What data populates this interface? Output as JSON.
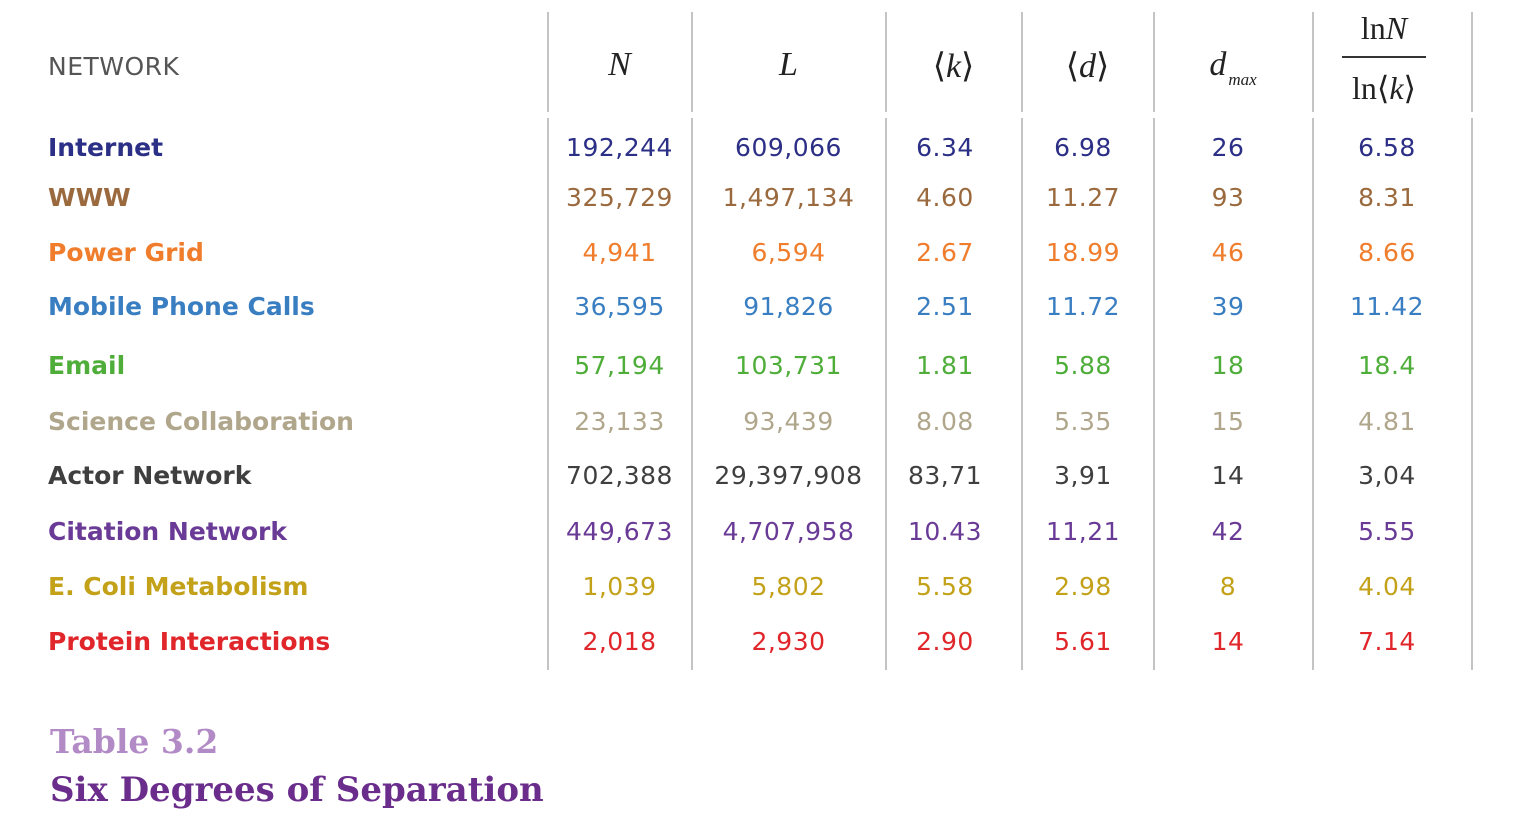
{
  "table": {
    "header": {
      "network": "NETWORK",
      "N": "N",
      "L": "L",
      "k": "k",
      "d": "d",
      "dmax_main": "d",
      "dmax_sub": "max",
      "ratio_num_ln": "ln",
      "ratio_num_var": "N",
      "ratio_den_ln": "ln",
      "ratio_den_var": "k"
    },
    "rows": [
      {
        "name": "Internet",
        "N": "192,244",
        "L": "609,066",
        "k": "6.34",
        "d": "6.98",
        "dmax": "26",
        "ratio": "6.58",
        "color": "#2c2f86"
      },
      {
        "name": "WWW",
        "N": "325,729",
        "L": "1,497,134",
        "k": "4.60",
        "d": "11.27",
        "dmax": "93",
        "ratio": "8.31",
        "color": "#9a6a3e"
      },
      {
        "name": "Power Grid",
        "N": "4,941",
        "L": "6,594",
        "k": "2.67",
        "d": "18.99",
        "dmax": "46",
        "ratio": "8.66",
        "color": "#ef7d2c"
      },
      {
        "name": "Mobile Phone Calls",
        "N": "36,595",
        "L": "91,826",
        "k": "2.51",
        "d": "11.72",
        "dmax": "39",
        "ratio": "11.42",
        "color": "#3a7ec2"
      },
      {
        "name": "Email",
        "N": "57,194",
        "L": "103,731",
        "k": "1.81",
        "d": "5.88",
        "dmax": "18",
        "ratio": "18.4",
        "color": "#4fae3a"
      },
      {
        "name": "Science Collaboration",
        "N": "23,133",
        "L": "93,439",
        "k": "8.08",
        "d": "5.35",
        "dmax": "15",
        "ratio": "4.81",
        "color": "#b0a68c"
      },
      {
        "name": "Actor Network",
        "N": "702,388",
        "L": "29,397,908",
        "k": "83,71",
        "d": "3,91",
        "dmax": "14",
        "ratio": "3,04",
        "color": "#3f3f3f"
      },
      {
        "name": "Citation Network",
        "N": "449,673",
        "L": "4,707,958",
        "k": "10.43",
        "d": "11,21",
        "dmax": "42",
        "ratio": "5.55",
        "color": "#6a3b96"
      },
      {
        "name": "E. Coli Metabolism",
        "N": "1,039",
        "L": "5,802",
        "k": "5.58",
        "d": "2.98",
        "dmax": "8",
        "ratio": "4.04",
        "color": "#c3a21a"
      },
      {
        "name": "Protein Interactions",
        "N": "2,018",
        "L": "2,930",
        "k": "2.90",
        "d": "5.61",
        "dmax": "14",
        "ratio": "7.14",
        "color": "#e0262a"
      }
    ]
  },
  "caption": {
    "number": "Table 3.2",
    "title": "Six Degrees of Separation"
  }
}
